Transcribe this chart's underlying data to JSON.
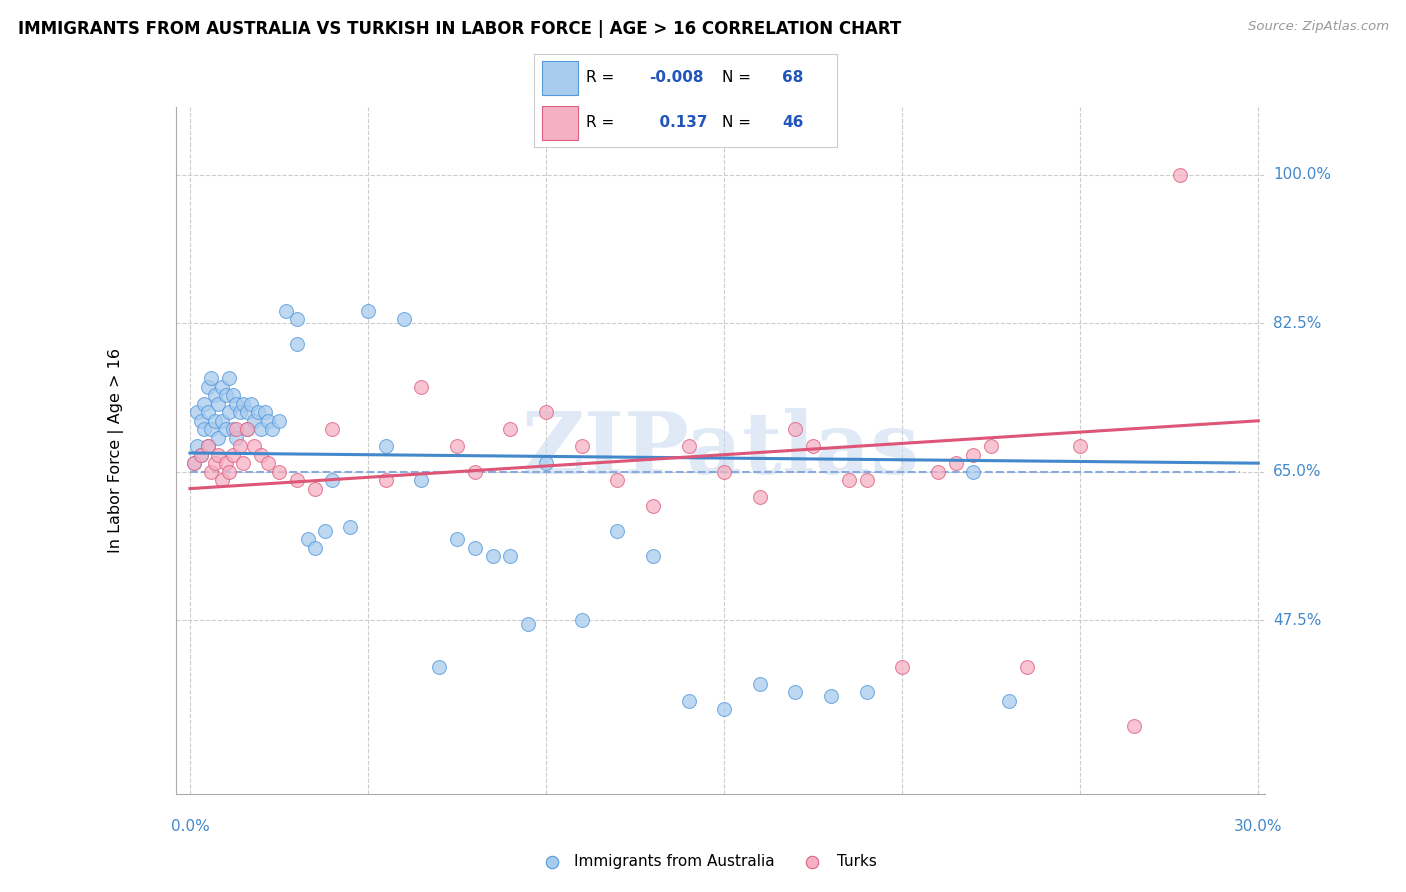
{
  "title": "IMMIGRANTS FROM AUSTRALIA VS TURKISH IN LABOR FORCE | AGE > 16 CORRELATION CHART",
  "source": "Source: ZipAtlas.com",
  "ylabel": "In Labor Force | Age > 16",
  "xlim_min": 0.0,
  "xlim_max": 0.302,
  "ylim_min": 0.27,
  "ylim_max": 1.08,
  "ytick_vals": [
    0.475,
    0.65,
    0.825,
    1.0
  ],
  "ytick_labels": [
    "47.5%",
    "65.0%",
    "82.5%",
    "100.0%"
  ],
  "xtick_vals": [
    0.0,
    0.05,
    0.1,
    0.15,
    0.2,
    0.25,
    0.3
  ],
  "color_blue_fill": "#a8ccee",
  "color_blue_edge": "#5599dd",
  "color_pink_fill": "#f4b0c4",
  "color_pink_edge": "#e06080",
  "color_blue_line": "#4488cc",
  "color_pink_line": "#dd5577",
  "color_blue_dash": "#88aadd",
  "color_grid": "#cccccc",
  "color_axis_labels": "#4488cc",
  "watermark_color": "#c8d8f0",
  "legend_R_blue": "-0.008",
  "legend_N_blue": "68",
  "legend_R_pink": "0.137",
  "legend_N_pink": "46",
  "blue_x": [
    0.001,
    0.002,
    0.002,
    0.003,
    0.003,
    0.004,
    0.004,
    0.005,
    0.005,
    0.005,
    0.006,
    0.006,
    0.007,
    0.007,
    0.008,
    0.008,
    0.009,
    0.009,
    0.01,
    0.01,
    0.011,
    0.011,
    0.012,
    0.012,
    0.013,
    0.013,
    0.014,
    0.015,
    0.016,
    0.016,
    0.017,
    0.018,
    0.019,
    0.02,
    0.021,
    0.022,
    0.023,
    0.025,
    0.027,
    0.03,
    0.03,
    0.033,
    0.035,
    0.038,
    0.04,
    0.045,
    0.05,
    0.055,
    0.06,
    0.065,
    0.07,
    0.075,
    0.08,
    0.085,
    0.09,
    0.095,
    0.1,
    0.11,
    0.12,
    0.13,
    0.14,
    0.15,
    0.16,
    0.17,
    0.18,
    0.19,
    0.22,
    0.23
  ],
  "blue_y": [
    0.66,
    0.72,
    0.68,
    0.71,
    0.67,
    0.73,
    0.7,
    0.75,
    0.72,
    0.68,
    0.76,
    0.7,
    0.74,
    0.71,
    0.73,
    0.69,
    0.75,
    0.71,
    0.74,
    0.7,
    0.76,
    0.72,
    0.74,
    0.7,
    0.73,
    0.69,
    0.72,
    0.73,
    0.72,
    0.7,
    0.73,
    0.71,
    0.72,
    0.7,
    0.72,
    0.71,
    0.7,
    0.71,
    0.84,
    0.83,
    0.8,
    0.57,
    0.56,
    0.58,
    0.64,
    0.585,
    0.84,
    0.68,
    0.83,
    0.64,
    0.42,
    0.57,
    0.56,
    0.55,
    0.55,
    0.47,
    0.66,
    0.475,
    0.58,
    0.55,
    0.38,
    0.37,
    0.4,
    0.39,
    0.385,
    0.39,
    0.65,
    0.38
  ],
  "pink_x": [
    0.001,
    0.003,
    0.005,
    0.006,
    0.007,
    0.008,
    0.009,
    0.01,
    0.011,
    0.012,
    0.013,
    0.014,
    0.015,
    0.016,
    0.018,
    0.02,
    0.022,
    0.025,
    0.03,
    0.035,
    0.04,
    0.055,
    0.065,
    0.075,
    0.08,
    0.09,
    0.1,
    0.11,
    0.12,
    0.13,
    0.14,
    0.15,
    0.16,
    0.17,
    0.175,
    0.185,
    0.19,
    0.2,
    0.21,
    0.215,
    0.22,
    0.225,
    0.235,
    0.25,
    0.265,
    0.278
  ],
  "pink_y": [
    0.66,
    0.67,
    0.68,
    0.65,
    0.66,
    0.67,
    0.64,
    0.66,
    0.65,
    0.67,
    0.7,
    0.68,
    0.66,
    0.7,
    0.68,
    0.67,
    0.66,
    0.65,
    0.64,
    0.63,
    0.7,
    0.64,
    0.75,
    0.68,
    0.65,
    0.7,
    0.72,
    0.68,
    0.64,
    0.61,
    0.68,
    0.65,
    0.62,
    0.7,
    0.68,
    0.64,
    0.64,
    0.42,
    0.65,
    0.66,
    0.67,
    0.68,
    0.42,
    0.68,
    0.35,
    1.0
  ]
}
